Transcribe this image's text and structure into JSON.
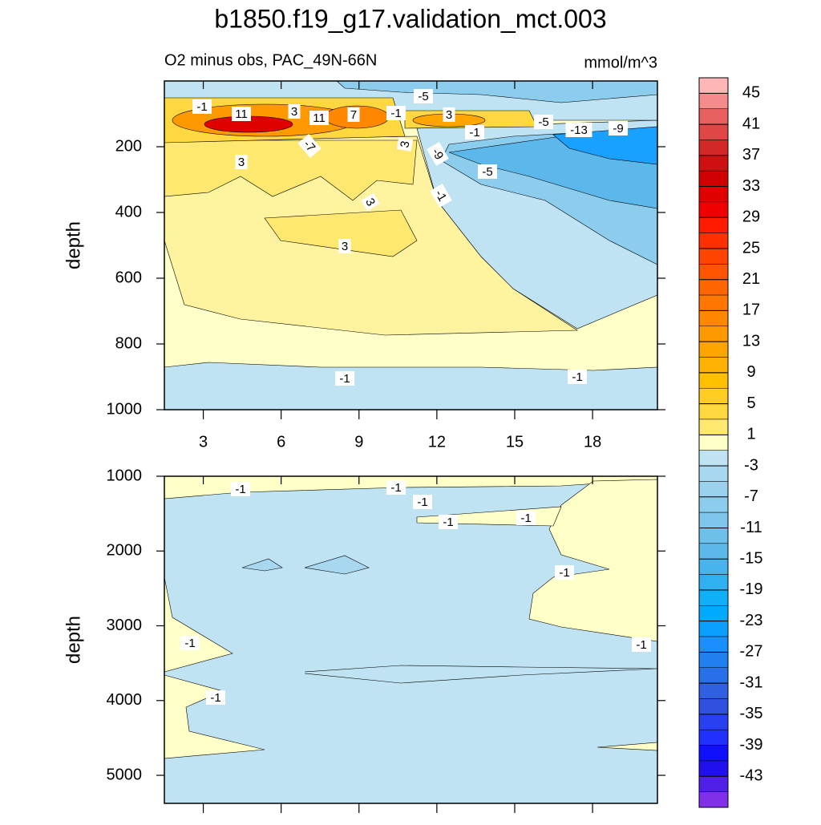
{
  "title": "b1850.f19_g17.validation_mct.003",
  "subtitle_left": "O2 minus obs, PAC_49N-66N",
  "subtitle_right": "mmol/m^3",
  "chart_data": [
    {
      "type": "contour",
      "ylabel": "depth",
      "xlim": [
        1.5,
        20.5
      ],
      "xticks": [
        3,
        6,
        9,
        12,
        15,
        18
      ],
      "ylim": [
        0,
        1000
      ],
      "y_reversed": true,
      "yticks": [
        200,
        400,
        600,
        800,
        1000
      ],
      "contour_labels": [
        -1,
        11,
        3,
        11,
        7,
        -1,
        -5,
        3,
        -1,
        -5,
        -13,
        -9,
        -7,
        3,
        -9,
        3,
        -5,
        -1,
        3,
        3,
        -1,
        -1
      ]
    },
    {
      "type": "contour",
      "ylabel": "depth",
      "xlim": [
        1.5,
        20.5
      ],
      "ylim": [
        1000,
        5375
      ],
      "y_reversed": true,
      "yticks": [
        1000,
        2000,
        3000,
        4000,
        5000
      ],
      "contour_labels": [
        -1,
        -1,
        -1,
        -1,
        -1,
        -1,
        -1,
        -1,
        -1
      ]
    }
  ],
  "colorbar": {
    "clim": [
      -47,
      47
    ],
    "ticks": [
      45,
      41,
      37,
      33,
      29,
      25,
      21,
      17,
      13,
      9,
      5,
      1,
      -3,
      -7,
      -11,
      -15,
      -19,
      -23,
      -27,
      -31,
      -35,
      -39,
      -43
    ],
    "colors": [
      "#ffb6b6",
      "#f48c8c",
      "#e86060",
      "#e04646",
      "#d42828",
      "#d01010",
      "#d00000",
      "#e00000",
      "#f00000",
      "#ff1a00",
      "#ff3000",
      "#ff4400",
      "#ff5500",
      "#ff6600",
      "#ff7700",
      "#ff8800",
      "#ff9900",
      "#ffa500",
      "#ffb000",
      "#ffc000",
      "#ffcc22",
      "#ffd840",
      "#ffe870",
      "#ffffc8",
      "#bfe3f3",
      "#a8d8f0",
      "#9ad2ee",
      "#8ccced",
      "#7ec6ec",
      "#6cc0ea",
      "#5cb8ea",
      "#48b4ee",
      "#30b0f0",
      "#10b0f8",
      "#00aaff",
      "#0aa0ff",
      "#1a90ff",
      "#2080f0",
      "#2870e8",
      "#3060e0",
      "#3050e0",
      "#2840f0",
      "#2030ff",
      "#1010ff",
      "#2010f0",
      "#5020e8",
      "#8030e8"
    ]
  }
}
